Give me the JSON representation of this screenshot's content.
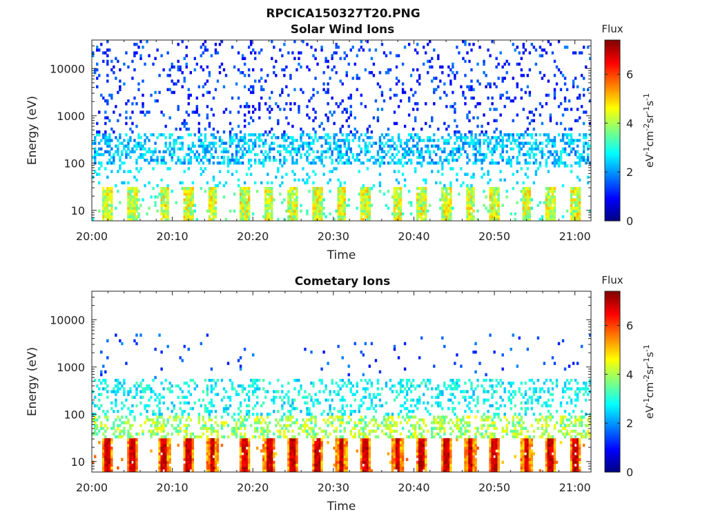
{
  "figure_title": "RPCICA150327T20.PNG",
  "chart_data": [
    {
      "type": "heatmap",
      "title": "Solar Wind Ions",
      "xlabel": "Time",
      "ylabel": "Energy (eV)",
      "x_ticks": [
        "20:00",
        "20:10",
        "20:20",
        "20:30",
        "20:40",
        "20:50",
        "21:00"
      ],
      "x_range": [
        "20:00",
        "21:02"
      ],
      "y_scale": "log",
      "y_ticks": [
        "10",
        "100",
        "1000",
        "10000"
      ],
      "y_range": [
        6,
        40000
      ],
      "colorbar": {
        "title": "Flux",
        "unit": "eV-1cm-2sr-1s-1",
        "ticks": [
          "0",
          "2",
          "4",
          "6"
        ],
        "range": [
          0,
          7.4
        ],
        "colormap": "jet"
      },
      "low_energy_burst_times": [
        "20:02",
        "20:05",
        "20:09",
        "20:12",
        "20:15",
        "20:19",
        "20:22",
        "20:25",
        "20:28",
        "20:31",
        "20:34",
        "20:38",
        "20:41",
        "20:44",
        "20:47",
        "20:50",
        "20:54",
        "20:57",
        "21:00"
      ],
      "background_bands": [
        {
          "energy_range_ev": [
            6,
            30
          ],
          "typical_flux": 3.4
        },
        {
          "energy_range_ev": [
            30,
            100
          ],
          "typical_flux": 2.6
        },
        {
          "energy_range_ev": [
            100,
            400
          ],
          "typical_flux": 2.2
        },
        {
          "energy_range_ev": [
            400,
            40000
          ],
          "typical_flux": 1.3
        }
      ]
    },
    {
      "type": "heatmap",
      "title": "Cometary Ions",
      "xlabel": "Time",
      "ylabel": "Energy (eV)",
      "x_ticks": [
        "20:00",
        "20:10",
        "20:20",
        "20:30",
        "20:40",
        "20:50",
        "21:00"
      ],
      "x_range": [
        "20:00",
        "21:02"
      ],
      "y_scale": "log",
      "y_ticks": [
        "10",
        "100",
        "1000",
        "10000"
      ],
      "y_range": [
        6,
        40000
      ],
      "colorbar": {
        "title": "Flux",
        "unit": "eV-1cm-2sr-1s-1",
        "ticks": [
          "0",
          "2",
          "4",
          "6"
        ],
        "range": [
          0,
          7.4
        ],
        "colormap": "jet"
      },
      "low_energy_burst_times": [
        "20:02",
        "20:05",
        "20:09",
        "20:12",
        "20:15",
        "20:19",
        "20:22",
        "20:25",
        "20:28",
        "20:31",
        "20:34",
        "20:38",
        "20:41",
        "20:44",
        "20:47",
        "20:50",
        "20:54",
        "20:57",
        "21:00"
      ],
      "burst_peak_flux": 7.2,
      "background_bands": [
        {
          "energy_range_ev": [
            6,
            30
          ],
          "typical_flux": 4.8
        },
        {
          "energy_range_ev": [
            30,
            100
          ],
          "typical_flux": 3.6
        },
        {
          "energy_range_ev": [
            100,
            600
          ],
          "typical_flux": 2.8
        },
        {
          "energy_range_ev": [
            600,
            5000
          ],
          "typical_flux": 1.5
        }
      ]
    }
  ]
}
